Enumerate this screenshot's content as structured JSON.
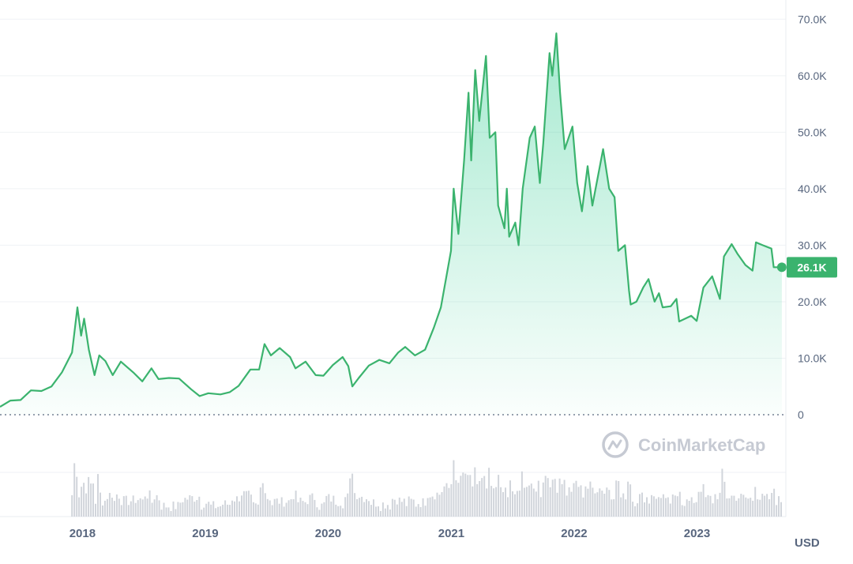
{
  "chart_data": {
    "type": "area",
    "currency_label": "USD",
    "watermark": "CoinMarketCap",
    "y_ticks": [
      "0",
      "10.0K",
      "20.0K",
      "30.0K",
      "40.0K",
      "50.0K",
      "60.0K",
      "70.0K"
    ],
    "y_tick_values": [
      0,
      10000,
      20000,
      30000,
      40000,
      50000,
      60000,
      70000
    ],
    "ylim": [
      0,
      72000
    ],
    "x_ticks": [
      "2018",
      "2019",
      "2020",
      "2021",
      "2022",
      "2023"
    ],
    "x_tick_dates": [
      "2018-01-01",
      "2019-01-01",
      "2020-01-01",
      "2021-01-01",
      "2022-01-01",
      "2023-01-01"
    ],
    "xlim": [
      "2017-05-01",
      "2023-09-15"
    ],
    "current_value": 26100,
    "current_label": "26.1K",
    "grid": true,
    "colors": {
      "line": "#3bb36e",
      "badge": "#3bb36e",
      "fill": "#16c784",
      "grid": "#eff2f5",
      "volume": "#d1d5db"
    },
    "series": [
      {
        "values": [
          [
            "2017-05-01",
            1400
          ],
          [
            "2017-06-01",
            2500
          ],
          [
            "2017-07-01",
            2600
          ],
          [
            "2017-08-01",
            4300
          ],
          [
            "2017-09-01",
            4200
          ],
          [
            "2017-10-01",
            5000
          ],
          [
            "2017-11-01",
            7500
          ],
          [
            "2017-12-01",
            11000
          ],
          [
            "2017-12-17",
            19000
          ],
          [
            "2017-12-28",
            14000
          ],
          [
            "2018-01-06",
            17000
          ],
          [
            "2018-01-20",
            11500
          ],
          [
            "2018-02-06",
            7000
          ],
          [
            "2018-02-20",
            10500
          ],
          [
            "2018-03-10",
            9500
          ],
          [
            "2018-04-01",
            7000
          ],
          [
            "2018-04-25",
            9400
          ],
          [
            "2018-06-01",
            7500
          ],
          [
            "2018-06-28",
            5900
          ],
          [
            "2018-07-25",
            8200
          ],
          [
            "2018-08-15",
            6300
          ],
          [
            "2018-09-15",
            6500
          ],
          [
            "2018-10-15",
            6400
          ],
          [
            "2018-11-20",
            4500
          ],
          [
            "2018-12-15",
            3300
          ],
          [
            "2019-01-10",
            3800
          ],
          [
            "2019-02-15",
            3600
          ],
          [
            "2019-03-15",
            4000
          ],
          [
            "2019-04-10",
            5100
          ],
          [
            "2019-05-15",
            8000
          ],
          [
            "2019-06-10",
            8000
          ],
          [
            "2019-06-26",
            12500
          ],
          [
            "2019-07-15",
            10500
          ],
          [
            "2019-08-10",
            11800
          ],
          [
            "2019-09-10",
            10200
          ],
          [
            "2019-09-26",
            8200
          ],
          [
            "2019-10-26",
            9400
          ],
          [
            "2019-11-25",
            7000
          ],
          [
            "2019-12-18",
            6900
          ],
          [
            "2020-01-15",
            8800
          ],
          [
            "2020-02-13",
            10200
          ],
          [
            "2020-03-01",
            8600
          ],
          [
            "2020-03-13",
            5000
          ],
          [
            "2020-04-01",
            6500
          ],
          [
            "2020-05-01",
            8700
          ],
          [
            "2020-06-01",
            9700
          ],
          [
            "2020-07-01",
            9100
          ],
          [
            "2020-07-27",
            11000
          ],
          [
            "2020-08-17",
            12000
          ],
          [
            "2020-09-15",
            10500
          ],
          [
            "2020-10-15",
            11500
          ],
          [
            "2020-11-10",
            15400
          ],
          [
            "2020-12-01",
            19000
          ],
          [
            "2020-12-31",
            29000
          ],
          [
            "2021-01-08",
            40000
          ],
          [
            "2021-01-22",
            32000
          ],
          [
            "2021-02-08",
            45000
          ],
          [
            "2021-02-21",
            57000
          ],
          [
            "2021-03-01",
            45000
          ],
          [
            "2021-03-13",
            61000
          ],
          [
            "2021-03-25",
            52000
          ],
          [
            "2021-04-14",
            63500
          ],
          [
            "2021-04-25",
            49000
          ],
          [
            "2021-05-12",
            50000
          ],
          [
            "2021-05-20",
            37000
          ],
          [
            "2021-06-08",
            33000
          ],
          [
            "2021-06-15",
            40000
          ],
          [
            "2021-06-22",
            31500
          ],
          [
            "2021-07-10",
            34000
          ],
          [
            "2021-07-20",
            30000
          ],
          [
            "2021-08-01",
            40000
          ],
          [
            "2021-08-22",
            49000
          ],
          [
            "2021-09-06",
            51000
          ],
          [
            "2021-09-21",
            41000
          ],
          [
            "2021-10-01",
            48000
          ],
          [
            "2021-10-20",
            64000
          ],
          [
            "2021-10-28",
            60000
          ],
          [
            "2021-11-09",
            67500
          ],
          [
            "2021-11-20",
            57000
          ],
          [
            "2021-12-04",
            47000
          ],
          [
            "2021-12-27",
            51000
          ],
          [
            "2022-01-10",
            41000
          ],
          [
            "2022-01-24",
            36000
          ],
          [
            "2022-02-10",
            44000
          ],
          [
            "2022-02-24",
            37000
          ],
          [
            "2022-03-28",
            47000
          ],
          [
            "2022-04-15",
            40000
          ],
          [
            "2022-05-01",
            38500
          ],
          [
            "2022-05-12",
            29000
          ],
          [
            "2022-06-01",
            30000
          ],
          [
            "2022-06-13",
            22000
          ],
          [
            "2022-06-18",
            19500
          ],
          [
            "2022-07-05",
            20000
          ],
          [
            "2022-07-25",
            22500
          ],
          [
            "2022-08-10",
            24000
          ],
          [
            "2022-08-28",
            20000
          ],
          [
            "2022-09-10",
            21500
          ],
          [
            "2022-09-21",
            19000
          ],
          [
            "2022-10-15",
            19200
          ],
          [
            "2022-11-01",
            20500
          ],
          [
            "2022-11-09",
            16500
          ],
          [
            "2022-12-15",
            17500
          ],
          [
            "2022-12-31",
            16600
          ],
          [
            "2023-01-20",
            22500
          ],
          [
            "2023-02-15",
            24500
          ],
          [
            "2023-03-10",
            20500
          ],
          [
            "2023-03-22",
            28000
          ],
          [
            "2023-04-14",
            30200
          ],
          [
            "2023-05-01",
            28500
          ],
          [
            "2023-05-25",
            26500
          ],
          [
            "2023-06-15",
            25500
          ],
          [
            "2023-06-25",
            30500
          ],
          [
            "2023-07-15",
            30000
          ],
          [
            "2023-08-10",
            29400
          ],
          [
            "2023-08-17",
            26100
          ],
          [
            "2023-09-10",
            26100
          ]
        ]
      }
    ]
  }
}
